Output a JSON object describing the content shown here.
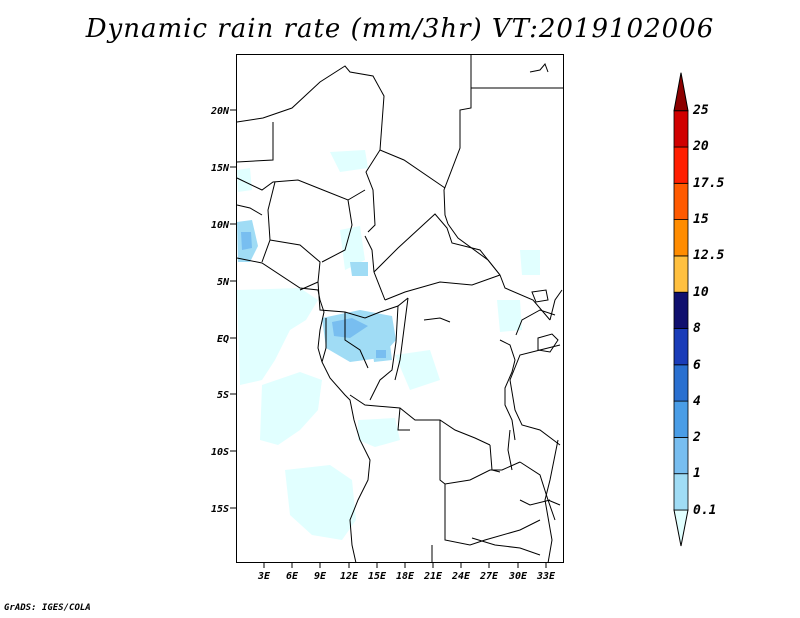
{
  "title": "Dynamic rain rate (mm/3hr) VT:2019102006",
  "credit": "GrADS: IGES/COLA",
  "map": {
    "lat_ticks": [
      "20N",
      "15N",
      "10N",
      "5N",
      "EQ",
      "5S",
      "10S",
      "15S"
    ],
    "lon_ticks": [
      "3E",
      "6E",
      "9E",
      "12E",
      "15E",
      "18E",
      "21E",
      "24E",
      "27E",
      "30E",
      "33E"
    ]
  },
  "colorbar": {
    "levels": [
      "0.1",
      "1",
      "2",
      "4",
      "6",
      "8",
      "10",
      "12.5",
      "15",
      "17.5",
      "20",
      "25"
    ],
    "colors": [
      "#e1ffff",
      "#a0dcf5",
      "#78bef0",
      "#4a9de6",
      "#2a70d0",
      "#1a3cb8",
      "#10106e",
      "#ffc040",
      "#ff8c00",
      "#ff5a00",
      "#ff1e00",
      "#d00000",
      "#8c0000"
    ]
  }
}
